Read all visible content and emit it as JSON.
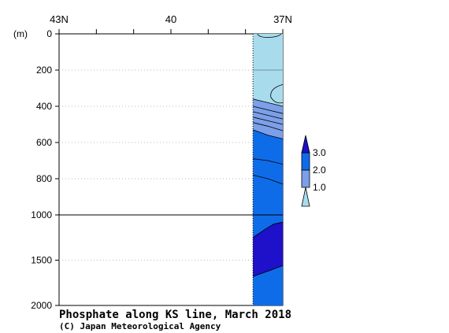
{
  "chart_data": {
    "type": "contour-section",
    "title": "Phosphate along KS line, March 2018",
    "credit": "(C) Japan Meteorological Agency",
    "yunit": "(m)",
    "x_tick_labels": [
      "43N",
      "40",
      "37N"
    ],
    "x_ticks": [
      43,
      42,
      41,
      40,
      39,
      38,
      37
    ],
    "xlim": [
      43,
      37
    ],
    "y_ticks": [
      0,
      200,
      400,
      600,
      800,
      1000,
      1500,
      2000
    ],
    "y_tick_labels": [
      "0",
      "200",
      "400",
      "600",
      "800",
      "1000",
      "1500",
      "2000"
    ],
    "y_upper_range": [
      0,
      1000
    ],
    "y_lower_range": [
      1000,
      2000
    ],
    "data_lat_range": [
      37.8,
      37
    ],
    "legend": {
      "levels": [
        "1.0",
        "2.0",
        "3.0"
      ],
      "colors": [
        "#a8dced",
        "#7b9fe8",
        "#0f6ce8",
        "#1f10c9"
      ]
    },
    "colors": {
      "low": "#a8dced",
      "mid": "#7b9fe8",
      "high": "#0f6ce8",
      "top": "#1f10c9"
    }
  }
}
